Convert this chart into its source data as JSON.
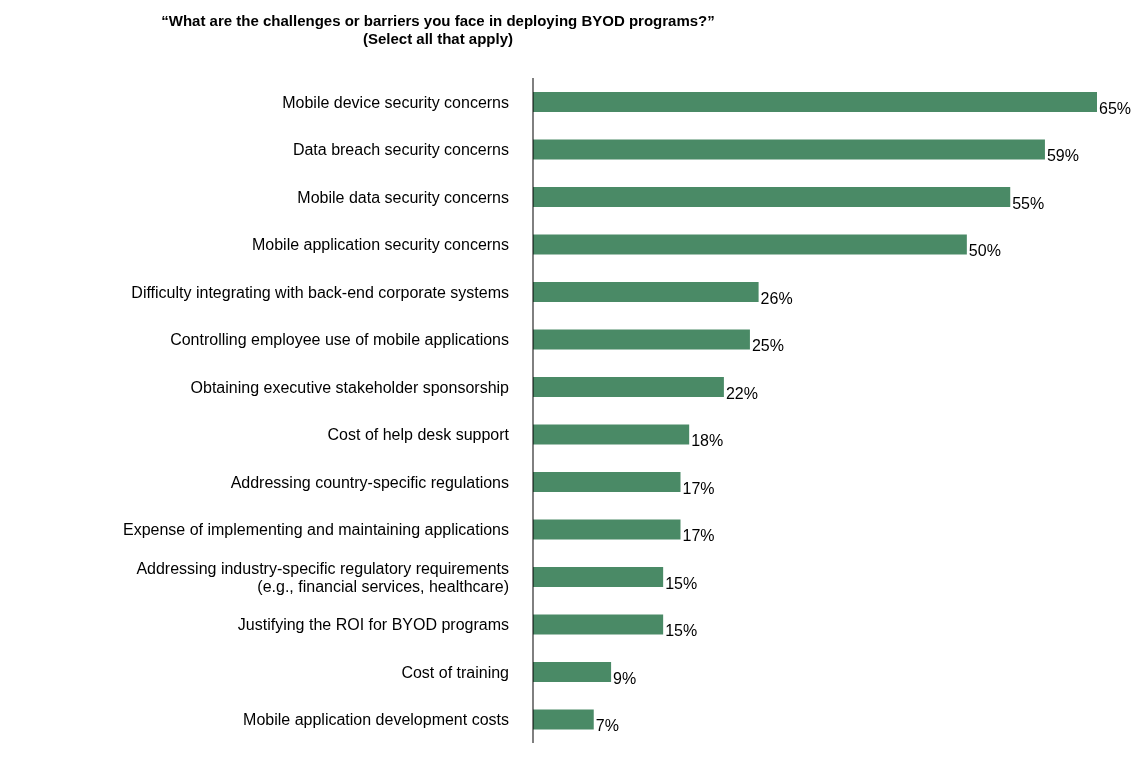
{
  "chart_data": {
    "type": "bar",
    "orientation": "horizontal",
    "title": "“What are the challenges or barriers you face in deploying BYOD programs?”",
    "subtitle": "(Select all that apply)",
    "categories": [
      "Mobile device security concerns",
      "Data breach security concerns",
      "Mobile data security concerns",
      "Mobile application security concerns",
      "Difficulty integrating with back-end corporate systems",
      "Controlling employee use of mobile applications",
      "Obtaining executive stakeholder sponsorship",
      "Cost of help desk support",
      "Addressing country-specific regulations",
      "Expense of implementing and maintaining applications",
      "Addressing industry-specific regulatory requirements (e.g., financial services, healthcare)",
      "Justifying the ROI for BYOD programs",
      "Cost of training",
      "Mobile application development costs"
    ],
    "values": [
      65,
      59,
      55,
      50,
      26,
      25,
      22,
      18,
      17,
      17,
      15,
      15,
      9,
      7
    ],
    "value_labels": [
      "65%",
      "59%",
      "55%",
      "50%",
      "26%",
      "25%",
      "22%",
      "18%",
      "17%",
      "17%",
      "15%",
      "15%",
      "9%",
      "7%"
    ],
    "color": "#4a8a66",
    "grid": false,
    "legend": false
  }
}
